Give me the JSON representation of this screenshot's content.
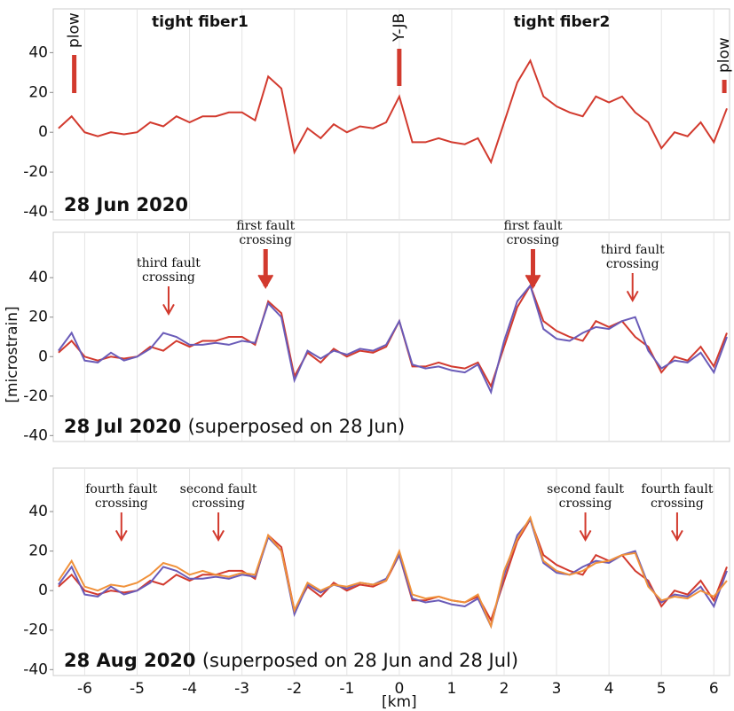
{
  "chart_data": [
    {
      "type": "line",
      "titles": [
        "tight fiber1",
        "tight fiber2"
      ],
      "markers": [
        "plow",
        "Y-JB",
        "plow"
      ],
      "date": "28 Jun 2020",
      "xlim": [
        -6.6,
        6.3
      ],
      "ylim": [
        -44,
        62
      ],
      "yticks": [
        -40,
        -20,
        0,
        20,
        40
      ],
      "grid": true,
      "x": [
        -6.5,
        -6.25,
        -6,
        -5.75,
        -5.5,
        -5.25,
        -5,
        -4.75,
        -4.5,
        -4.25,
        -4,
        -3.75,
        -3.5,
        -3.25,
        -3,
        -2.75,
        -2.5,
        -2.25,
        -2,
        -1.75,
        -1.5,
        -1.25,
        -1,
        -0.75,
        -0.5,
        -0.25,
        0,
        0.25,
        0.5,
        0.75,
        1,
        1.25,
        1.5,
        1.75,
        2,
        2.25,
        2.5,
        2.75,
        3,
        3.25,
        3.5,
        3.75,
        4,
        4.25,
        4.5,
        4.75,
        5,
        5.25,
        5.5,
        5.75,
        6,
        6.25
      ],
      "series": [
        {
          "color": "#d23a2e",
          "values": [
            2,
            8,
            0,
            -2,
            0,
            -1,
            0,
            5,
            3,
            8,
            5,
            8,
            8,
            10,
            10,
            6,
            28,
            22,
            -10,
            2,
            -3,
            4,
            0,
            3,
            2,
            5,
            18,
            -5,
            -5,
            -3,
            -5,
            -6,
            -3,
            -15,
            5,
            25,
            36,
            18,
            13,
            10,
            8,
            18,
            15,
            18,
            10,
            5,
            -8,
            0,
            -2,
            5,
            -5,
            12
          ]
        }
      ]
    },
    {
      "type": "line",
      "date": "28 Jul 2020",
      "note": "(superposed on 28 Jun)",
      "ylabel": "[microstrain]",
      "annotations": [
        {
          "lines": [
            "third fault",
            "crossing"
          ]
        },
        {
          "lines": [
            "first fault",
            "crossing"
          ]
        },
        {
          "lines": [
            "first fault",
            "crossing"
          ]
        },
        {
          "lines": [
            "third fault",
            "crossing"
          ]
        }
      ],
      "xlim": [
        -6.6,
        6.3
      ],
      "ylim": [
        -43,
        63
      ],
      "yticks": [
        -40,
        -20,
        0,
        20,
        40
      ],
      "grid": true,
      "x": [
        -6.5,
        -6.25,
        -6,
        -5.75,
        -5.5,
        -5.25,
        -5,
        -4.75,
        -4.5,
        -4.25,
        -4,
        -3.75,
        -3.5,
        -3.25,
        -3,
        -2.75,
        -2.5,
        -2.25,
        -2,
        -1.75,
        -1.5,
        -1.25,
        -1,
        -0.75,
        -0.5,
        -0.25,
        0,
        0.25,
        0.5,
        0.75,
        1,
        1.25,
        1.5,
        1.75,
        2,
        2.25,
        2.5,
        2.75,
        3,
        3.25,
        3.5,
        3.75,
        4,
        4.25,
        4.5,
        4.75,
        5,
        5.25,
        5.5,
        5.75,
        6,
        6.25
      ],
      "series": [
        {
          "color": "#d23a2e",
          "values": [
            2,
            8,
            0,
            -2,
            0,
            -1,
            0,
            5,
            3,
            8,
            5,
            8,
            8,
            10,
            10,
            6,
            28,
            22,
            -10,
            2,
            -3,
            4,
            0,
            3,
            2,
            5,
            18,
            -5,
            -5,
            -3,
            -5,
            -6,
            -3,
            -15,
            5,
            25,
            36,
            18,
            13,
            10,
            8,
            18,
            15,
            18,
            10,
            5,
            -8,
            0,
            -2,
            5,
            -5,
            12
          ]
        },
        {
          "color": "#6a5bb8",
          "values": [
            3,
            12,
            -2,
            -3,
            2,
            -2,
            0,
            4,
            12,
            10,
            6,
            6,
            7,
            6,
            8,
            7,
            27,
            20,
            -12,
            3,
            -1,
            3,
            1,
            4,
            3,
            6,
            18,
            -4,
            -6,
            -5,
            -7,
            -8,
            -4,
            -18,
            8,
            28,
            36,
            14,
            9,
            8,
            12,
            15,
            14,
            18,
            20,
            3,
            -6,
            -2,
            -3,
            2,
            -8,
            10
          ]
        }
      ]
    },
    {
      "type": "line",
      "date": "28 Aug 2020",
      "note": "(superposed on 28 Jun and 28 Jul)",
      "xlabel": "[km]",
      "annotations": [
        {
          "lines": [
            "fourth fault",
            "crossing"
          ]
        },
        {
          "lines": [
            "second fault",
            "crossing"
          ]
        },
        {
          "lines": [
            "second fault",
            "crossing"
          ]
        },
        {
          "lines": [
            "fourth fault",
            "crossing"
          ]
        }
      ],
      "xlim": [
        -6.6,
        6.3
      ],
      "ylim": [
        -43,
        62
      ],
      "yticks": [
        -40,
        -20,
        0,
        20,
        40
      ],
      "xticks": [
        -6,
        -5,
        -4,
        -3,
        -2,
        -1,
        0,
        1,
        2,
        3,
        4,
        5,
        6
      ],
      "grid": true,
      "x": [
        -6.5,
        -6.25,
        -6,
        -5.75,
        -5.5,
        -5.25,
        -5,
        -4.75,
        -4.5,
        -4.25,
        -4,
        -3.75,
        -3.5,
        -3.25,
        -3,
        -2.75,
        -2.5,
        -2.25,
        -2,
        -1.75,
        -1.5,
        -1.25,
        -1,
        -0.75,
        -0.5,
        -0.25,
        0,
        0.25,
        0.5,
        0.75,
        1,
        1.25,
        1.5,
        1.75,
        2,
        2.25,
        2.5,
        2.75,
        3,
        3.25,
        3.5,
        3.75,
        4,
        4.25,
        4.5,
        4.75,
        5,
        5.25,
        5.5,
        5.75,
        6,
        6.25
      ],
      "series": [
        {
          "color": "#d23a2e",
          "values": [
            2,
            8,
            0,
            -2,
            0,
            -1,
            0,
            5,
            3,
            8,
            5,
            8,
            8,
            10,
            10,
            6,
            28,
            22,
            -10,
            2,
            -3,
            4,
            0,
            3,
            2,
            5,
            18,
            -5,
            -5,
            -3,
            -5,
            -6,
            -3,
            -15,
            5,
            25,
            36,
            18,
            13,
            10,
            8,
            18,
            15,
            18,
            10,
            5,
            -8,
            0,
            -2,
            5,
            -5,
            12
          ]
        },
        {
          "color": "#6a5bb8",
          "values": [
            3,
            12,
            -2,
            -3,
            2,
            -2,
            0,
            4,
            12,
            10,
            6,
            6,
            7,
            6,
            8,
            7,
            27,
            20,
            -12,
            3,
            -1,
            3,
            1,
            4,
            3,
            6,
            18,
            -4,
            -6,
            -5,
            -7,
            -8,
            -4,
            -18,
            8,
            28,
            36,
            14,
            9,
            8,
            12,
            15,
            14,
            18,
            20,
            3,
            -6,
            -2,
            -3,
            2,
            -8,
            10
          ]
        },
        {
          "color": "#f0913a",
          "values": [
            5,
            15,
            2,
            0,
            3,
            2,
            4,
            8,
            14,
            12,
            8,
            10,
            8,
            7,
            9,
            8,
            28,
            20,
            -10,
            4,
            0,
            3,
            2,
            4,
            3,
            5,
            20,
            -2,
            -4,
            -3,
            -5,
            -6,
            -2,
            -18,
            10,
            26,
            37,
            15,
            10,
            8,
            10,
            14,
            15,
            18,
            19,
            2,
            -5,
            -3,
            -4,
            0,
            -3,
            5
          ]
        }
      ]
    }
  ]
}
